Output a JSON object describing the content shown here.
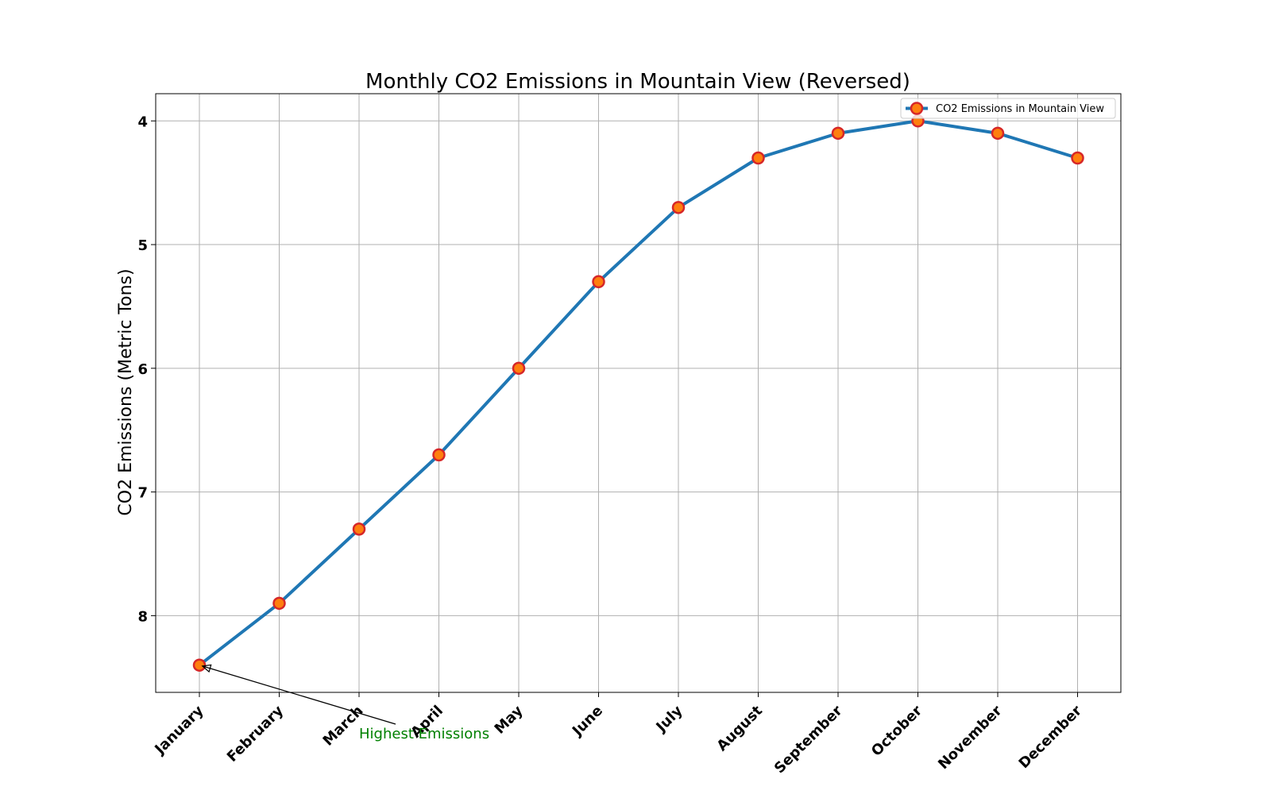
{
  "chart_data": {
    "type": "line",
    "title": "Monthly CO2 Emissions in Mountain View (Reversed)",
    "xlabel": "",
    "ylabel": "CO2 Emissions (Metric Tons)",
    "categories": [
      "January",
      "February",
      "March",
      "April",
      "May",
      "June",
      "July",
      "August",
      "September",
      "October",
      "November",
      "December"
    ],
    "series": [
      {
        "name": "CO2 Emissions in Mountain View",
        "values": [
          8.4,
          7.9,
          7.3,
          6.7,
          6.0,
          5.3,
          4.7,
          4.3,
          4.1,
          4.0,
          4.1,
          4.3
        ],
        "line_color": "#1f77b4",
        "marker_face": "#ff7f0e",
        "marker_edge": "#d62728"
      }
    ],
    "ylim": [
      8.62,
      3.78
    ],
    "y_inverted": true,
    "yticks": [
      4,
      5,
      6,
      7,
      8
    ],
    "grid": true,
    "legend_position": "upper right",
    "annotation": {
      "text": "Highest Emissions",
      "target_category": "January",
      "target_value": 8.4,
      "color": "#008000"
    }
  }
}
